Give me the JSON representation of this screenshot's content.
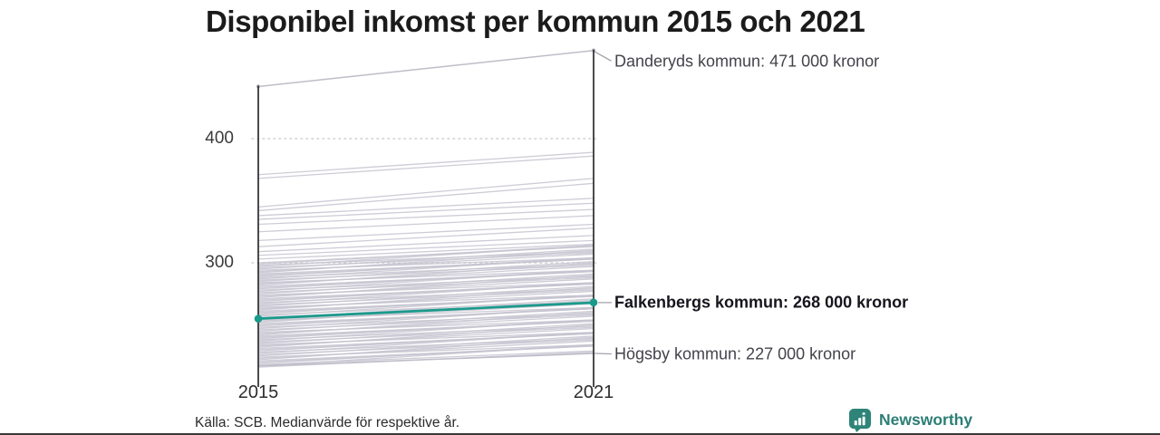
{
  "title": "Disponibel inkomst per kommun 2015 och 2021",
  "source": "Källa: SCB. Medianvärde för respektive år.",
  "branding": {
    "name": "Newsworthy",
    "icon": "newsworthy-chart-bubble-icon",
    "color": "#2b7e75"
  },
  "chart_data": {
    "type": "line",
    "variant": "slope",
    "title": "Disponibel inkomst per kommun 2015 och 2021",
    "x": [
      2015,
      2021
    ],
    "x_labels": [
      "2015",
      "2021"
    ],
    "y_ticks": [
      "400",
      "300"
    ],
    "y_tick_values": [
      400,
      300
    ],
    "value_unit": "kronor",
    "grid": "dotted horizontal at y ticks",
    "legend": "none",
    "highlight_color": "#1a9a8c",
    "line_color": "#c6c4d0",
    "axis_color": "#2d2d2d",
    "annotations": [
      {
        "name": "Danderyds kommun",
        "label": "Danderyds kommun: 471 000 kronor",
        "values": [
          442,
          471
        ],
        "highlighted": false
      },
      {
        "name": "Falkenbergs kommun",
        "label": "Falkenbergs kommun: 268 000 kronor",
        "values": [
          255,
          268
        ],
        "highlighted": true
      },
      {
        "name": "Högsby kommun",
        "label": "Högsby kommun: 227 000 kronor",
        "values": [
          217,
          227
        ],
        "highlighted": false
      }
    ],
    "background_series": [
      [
        371,
        389
      ],
      [
        368,
        386
      ],
      [
        345,
        368
      ],
      [
        342,
        364
      ],
      [
        338,
        352
      ],
      [
        335,
        348
      ],
      [
        331,
        343
      ],
      [
        325,
        338
      ],
      [
        318,
        331
      ],
      [
        313,
        328
      ],
      [
        309,
        322
      ],
      [
        306,
        318
      ],
      [
        303,
        315
      ],
      [
        300,
        313
      ],
      [
        299,
        314
      ],
      [
        298,
        309
      ],
      [
        297,
        314
      ],
      [
        296,
        308
      ],
      [
        295,
        311
      ],
      [
        294,
        304
      ],
      [
        293,
        307
      ],
      [
        292,
        310
      ],
      [
        291,
        303
      ],
      [
        290,
        303
      ],
      [
        289,
        304
      ],
      [
        288,
        299
      ],
      [
        287,
        304
      ],
      [
        286,
        298
      ],
      [
        285,
        301
      ],
      [
        284,
        294
      ],
      [
        283,
        297
      ],
      [
        282,
        300
      ],
      [
        281,
        293
      ],
      [
        280,
        293
      ],
      [
        279,
        294
      ],
      [
        278,
        289
      ],
      [
        277,
        294
      ],
      [
        276,
        288
      ],
      [
        275,
        291
      ],
      [
        274,
        284
      ],
      [
        273,
        287
      ],
      [
        272,
        290
      ],
      [
        271,
        283
      ],
      [
        270,
        283
      ],
      [
        269,
        284
      ],
      [
        268,
        279
      ],
      [
        267,
        284
      ],
      [
        266,
        278
      ],
      [
        265,
        281
      ],
      [
        264,
        274
      ],
      [
        263,
        277
      ],
      [
        262,
        280
      ],
      [
        261,
        273
      ],
      [
        260,
        273
      ],
      [
        259,
        274
      ],
      [
        258,
        269
      ],
      [
        257,
        274
      ],
      [
        256,
        268
      ],
      [
        255,
        271
      ],
      [
        254,
        264
      ],
      [
        253,
        267
      ],
      [
        252,
        270
      ],
      [
        251,
        263
      ],
      [
        250,
        263
      ],
      [
        249,
        264
      ],
      [
        248,
        259
      ],
      [
        247,
        264
      ],
      [
        246,
        258
      ],
      [
        245,
        261
      ],
      [
        244,
        254
      ],
      [
        243,
        257
      ],
      [
        242,
        260
      ],
      [
        241,
        253
      ],
      [
        240,
        253
      ],
      [
        239,
        254
      ],
      [
        238,
        249
      ],
      [
        237,
        254
      ],
      [
        236,
        248
      ],
      [
        235,
        251
      ],
      [
        234,
        244
      ],
      [
        233,
        247
      ],
      [
        232,
        250
      ],
      [
        231,
        243
      ],
      [
        230,
        243
      ],
      [
        229,
        244
      ],
      [
        228,
        239
      ],
      [
        227,
        244
      ],
      [
        226,
        238
      ],
      [
        225,
        241
      ],
      [
        224,
        234
      ],
      [
        223,
        237
      ],
      [
        222,
        240
      ],
      [
        221,
        233
      ],
      [
        220,
        233
      ],
      [
        219,
        234
      ],
      [
        218,
        229
      ],
      [
        217,
        234
      ],
      [
        216,
        228
      ]
    ]
  }
}
